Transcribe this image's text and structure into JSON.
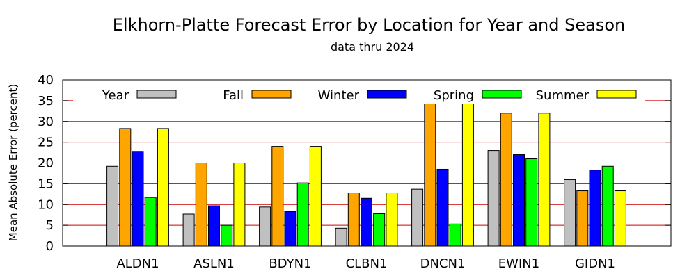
{
  "chart_data": {
    "type": "bar",
    "title": "Elkhorn-Platte Forecast Error by Location for Year and Season",
    "subtitle": "data thru 2024",
    "xlabel": "",
    "ylabel": "Mean Absolute Error (percent)",
    "ylim": [
      0,
      40
    ],
    "yticks": [
      0,
      5,
      10,
      15,
      20,
      25,
      30,
      35,
      40
    ],
    "grid": true,
    "legend_position": "top",
    "categories": [
      "ALDN1",
      "ASLN1",
      "BDYN1",
      "CLBN1",
      "DNCN1",
      "EWIN1",
      "GIDN1"
    ],
    "series": [
      {
        "name": "Year",
        "color": "#c0c0c0",
        "values": [
          19.2,
          7.7,
          9.4,
          4.3,
          13.7,
          23.0,
          16.0
        ]
      },
      {
        "name": "Fall",
        "color": "#ffa500",
        "values": [
          28.3,
          20.0,
          24.0,
          12.8,
          34.8,
          32.0,
          13.3
        ]
      },
      {
        "name": "Winter",
        "color": "#0000ff",
        "values": [
          22.8,
          9.7,
          8.3,
          11.5,
          18.5,
          22.0,
          18.3
        ]
      },
      {
        "name": "Spring",
        "color": "#00ff00",
        "values": [
          11.7,
          5.0,
          15.2,
          7.8,
          5.3,
          21.0,
          19.2
        ]
      },
      {
        "name": "Summer",
        "color": "#ffff00",
        "values": [
          28.3,
          20.0,
          24.0,
          12.8,
          34.8,
          32.0,
          13.3
        ]
      }
    ],
    "gridline_color": "#cc0000"
  }
}
